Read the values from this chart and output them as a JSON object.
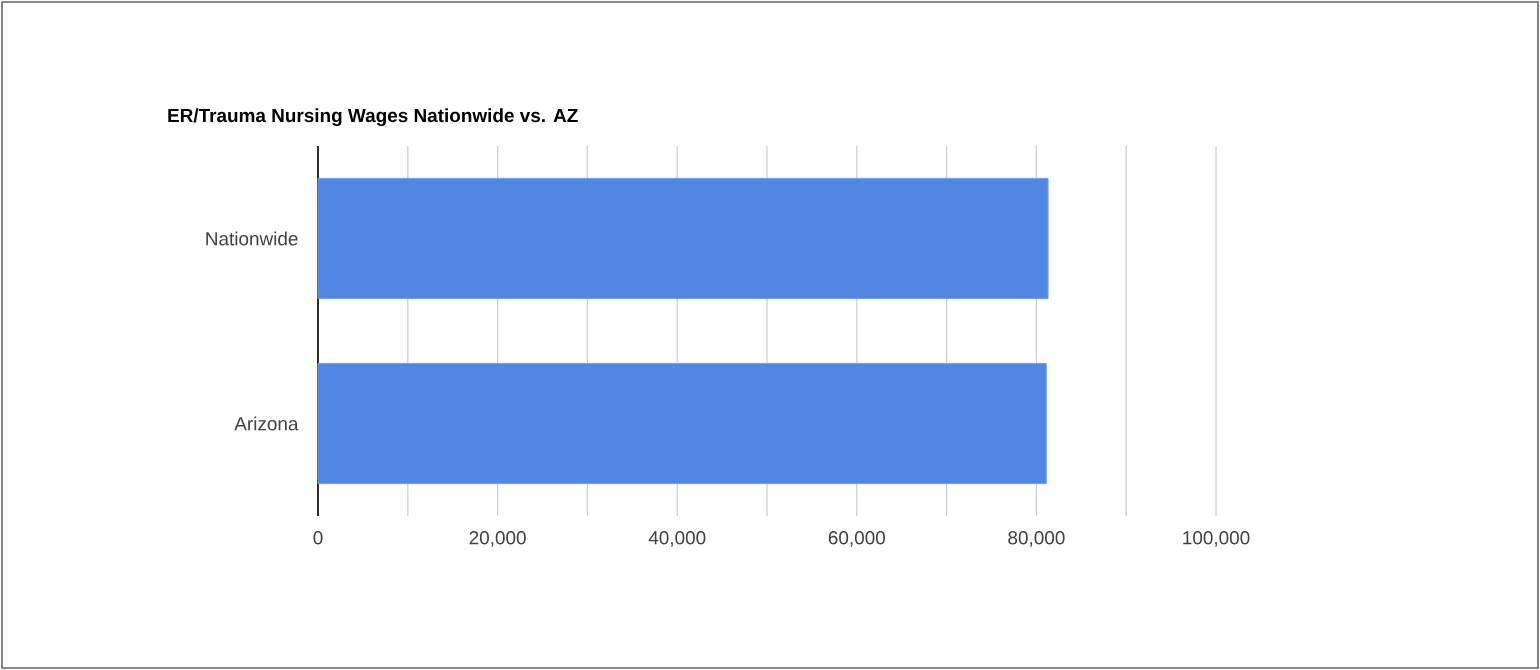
{
  "chart_data": {
    "type": "bar",
    "orientation": "horizontal",
    "title": "ER/Trauma Nursing Wages Nationwide vs. AZ",
    "categories": [
      "Nationwide",
      "Arizona"
    ],
    "values": [
      81300,
      81100
    ],
    "color": "#5286e3",
    "xlim": [
      0,
      100000
    ],
    "xticks": [
      0,
      {
        "value": 10000,
        "label": null
      },
      {
        "value": 20000,
        "label": "20,000"
      },
      {
        "value": 30000,
        "label": null
      },
      {
        "value": 40000,
        "label": "40,000"
      },
      {
        "value": 50000,
        "label": null
      },
      {
        "value": 60000,
        "label": "60,000"
      },
      {
        "value": 70000,
        "label": null
      },
      {
        "value": 80000,
        "label": "80,000"
      },
      {
        "value": 90000,
        "label": null
      },
      {
        "value": 100000,
        "label": "100,000"
      }
    ],
    "grid": "x"
  }
}
